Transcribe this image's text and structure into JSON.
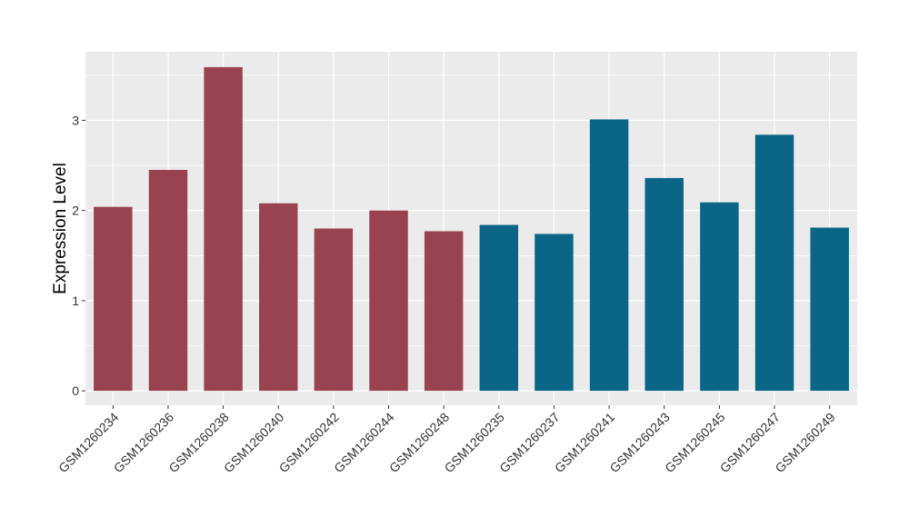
{
  "chart_data": {
    "type": "bar",
    "title": "",
    "xlabel": "",
    "ylabel": "Expression Level",
    "ylim": [
      -0.16,
      3.76
    ],
    "yticks": [
      0,
      1,
      2,
      3
    ],
    "grid": true,
    "legend": "none",
    "background": "#EBEBEB",
    "categories": [
      "GSM1260234",
      "GSM1260236",
      "GSM1260238",
      "GSM1260240",
      "GSM1260242",
      "GSM1260244",
      "GSM1260248",
      "GSM1260235",
      "GSM1260237",
      "GSM1260241",
      "GSM1260243",
      "GSM1260245",
      "GSM1260247",
      "GSM1260249"
    ],
    "values": [
      2.04,
      2.45,
      3.59,
      2.08,
      1.8,
      2.0,
      1.77,
      1.84,
      1.74,
      3.01,
      2.36,
      2.09,
      2.84,
      1.81
    ],
    "colors": [
      "#9A4350",
      "#9A4350",
      "#9A4350",
      "#9A4350",
      "#9A4350",
      "#9A4350",
      "#9A4350",
      "#0B6586",
      "#0B6586",
      "#0B6586",
      "#0B6586",
      "#0B6586",
      "#0B6586",
      "#0B6586"
    ]
  }
}
